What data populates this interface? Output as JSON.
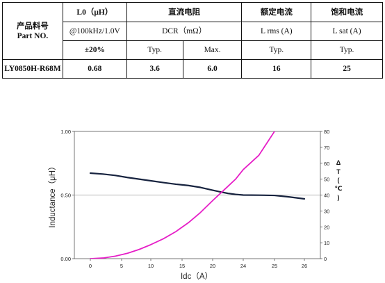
{
  "table": {
    "r1": {
      "part_cn": "产品料号",
      "part_en": "Part NO.",
      "l0_head": "L0（μH）",
      "dcr_cn": "直流电阻",
      "irms_cn": "额定电流",
      "isat_cn": "饱和电流"
    },
    "r2": {
      "l0_cond": "@100kHz/1.0V",
      "dcr_unit": "DCR（mΩ）",
      "irms_unit": "L rms (A)",
      "isat_unit": "L sat (A)"
    },
    "r3": {
      "tol": "±20%",
      "typ1": "Typ.",
      "max": "Max.",
      "typ2": "Typ.",
      "typ3": "Typ."
    },
    "r4": {
      "part": "LY0850H-R68M",
      "l0": "0.68",
      "dcr_typ": "3.6",
      "dcr_max": "6.0",
      "irms": "16",
      "isat": "25"
    }
  },
  "chart_data": {
    "type": "line",
    "xlabel": "Idc（A）",
    "ylabel": "Inductance（μH）",
    "y2label_chars": [
      "Δ",
      "T",
      "(",
      "℃",
      ")"
    ],
    "x_ticks": [
      "0",
      "5",
      "10",
      "15",
      "20",
      "24",
      "25",
      "26"
    ],
    "y_ticks": [
      "0.00",
      "0.50",
      "1.00"
    ],
    "y2_ticks": [
      "0",
      "10",
      "20",
      "30",
      "40",
      "50",
      "60",
      "70",
      "80"
    ],
    "ylim": [
      0,
      1.0
    ],
    "y2lim": [
      0,
      80
    ],
    "grid": "horizontal at 0.50",
    "series": [
      {
        "axis": "left",
        "color": "#17233f",
        "x": [
          0,
          2,
          4,
          6,
          8,
          10,
          12,
          14,
          16,
          18,
          20,
          21,
          22,
          23,
          24,
          24.5,
          25,
          25.5,
          26
        ],
        "y": [
          0.672,
          0.665,
          0.654,
          0.638,
          0.625,
          0.612,
          0.598,
          0.585,
          0.575,
          0.56,
          0.538,
          0.525,
          0.513,
          0.505,
          0.5,
          0.499,
          0.497,
          0.485,
          0.47
        ]
      },
      {
        "axis": "right",
        "color": "#e61ec7",
        "x": [
          0,
          2,
          4,
          6,
          8,
          10,
          12,
          14,
          16,
          18,
          20,
          21,
          22,
          23,
          24,
          24.5,
          25
        ],
        "y": [
          0,
          0.4,
          1.6,
          3.4,
          5.8,
          8.8,
          12.5,
          17,
          22.5,
          29,
          36.5,
          41,
          45.5,
          50,
          56,
          65,
          80
        ]
      }
    ]
  }
}
